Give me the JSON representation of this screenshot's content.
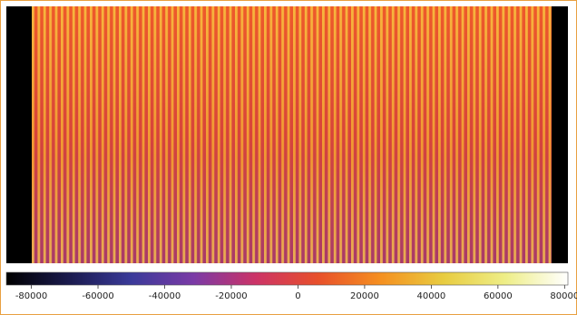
{
  "chart_data": {
    "type": "heatmap",
    "colormap": [
      "#000000",
      "#1a1a4d",
      "#3a3a99",
      "#7a3aa6",
      "#cc3366",
      "#e8502a",
      "#f59020",
      "#e8cc40",
      "#eeee88",
      "#ffffff"
    ],
    "colorbar": {
      "xlim": [
        -87500,
        81000
      ],
      "xticks": [
        -80000,
        -60000,
        -40000,
        -20000,
        0,
        20000,
        40000,
        60000,
        80000
      ]
    }
  }
}
